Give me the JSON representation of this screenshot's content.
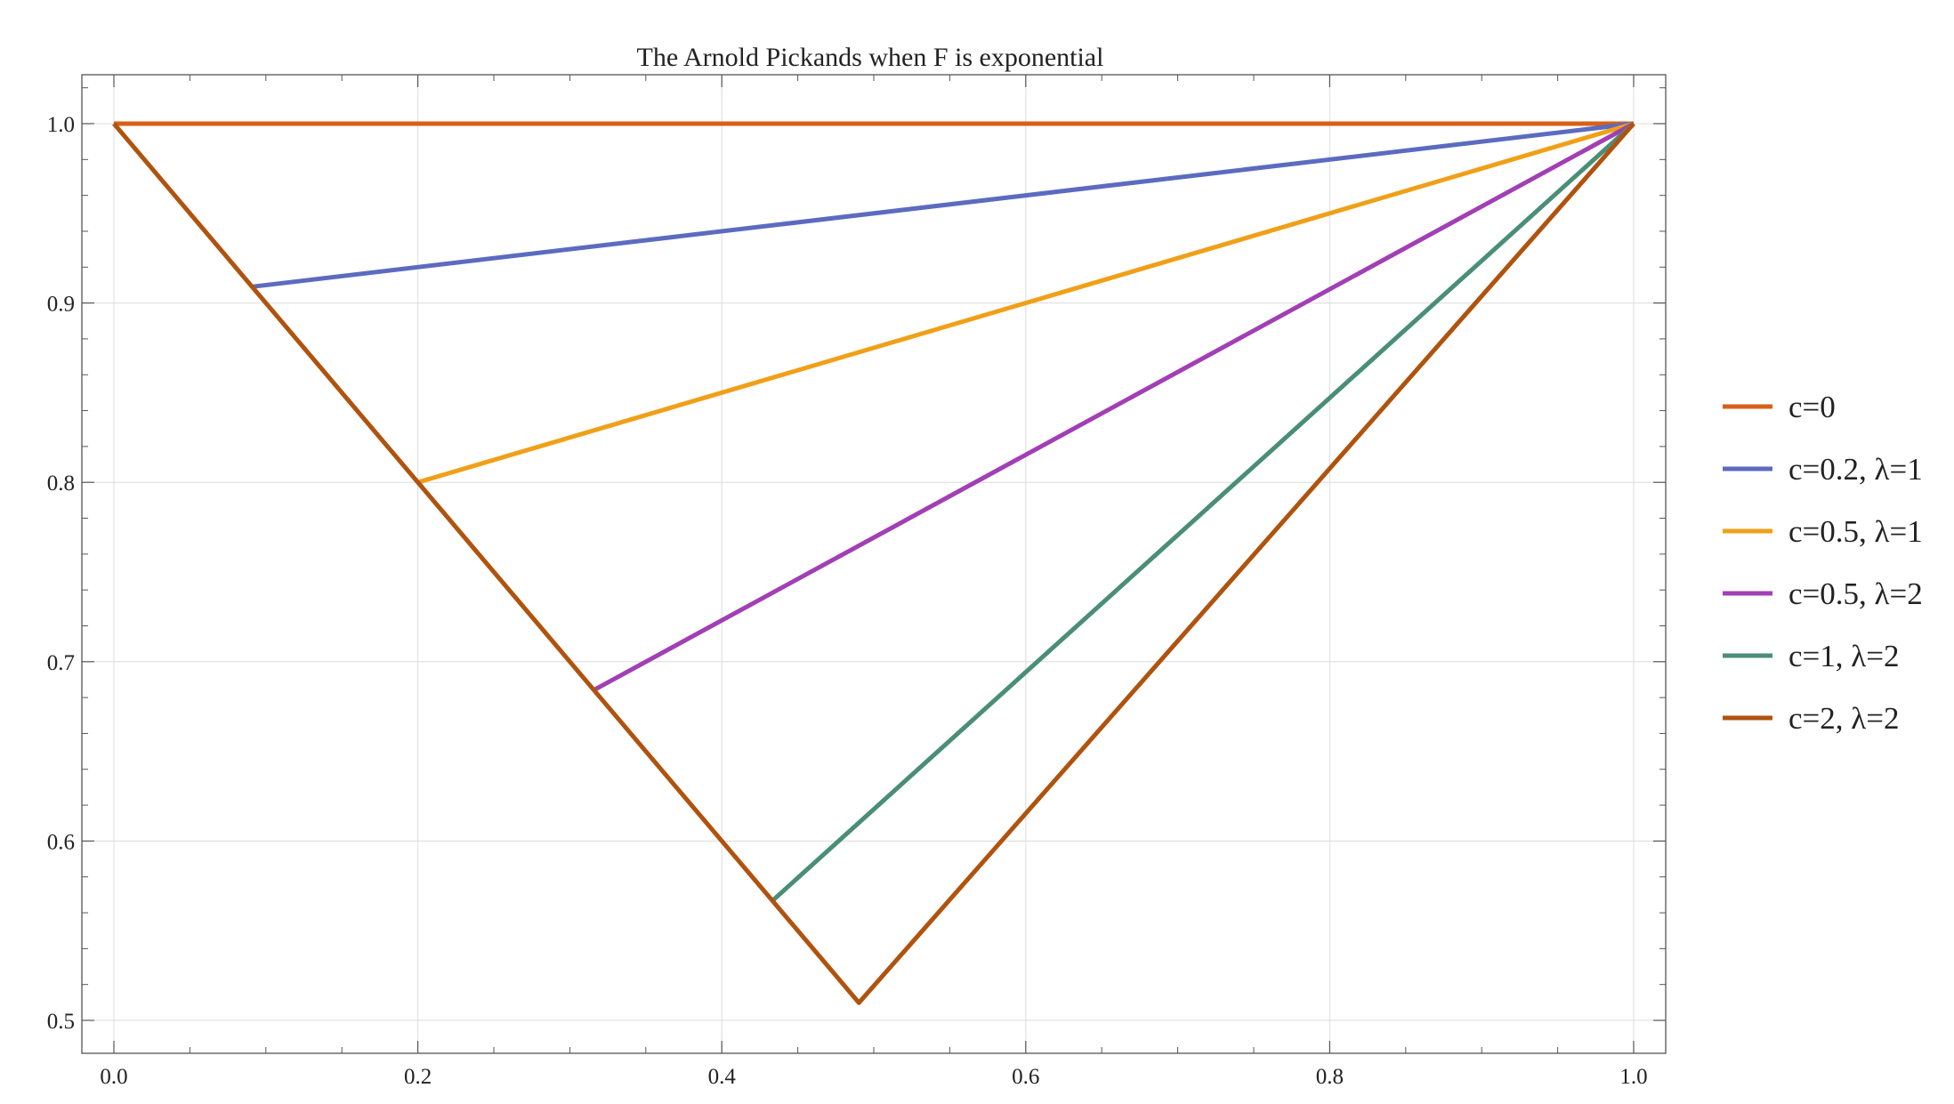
{
  "chart_data": {
    "type": "line",
    "title": "The Arnold Pickands when F is exponential",
    "xlabel": "",
    "ylabel": "",
    "xlim": [
      0,
      1
    ],
    "ylim": [
      0.5,
      1.0
    ],
    "grid": true,
    "legend_position": "right",
    "x_ticks": [
      "0.0",
      "0.2",
      "0.4",
      "0.6",
      "0.8",
      "1.0"
    ],
    "y_ticks": [
      "0.5",
      "0.6",
      "0.7",
      "0.8",
      "0.9",
      "1.0"
    ],
    "series": [
      {
        "name": "c=0",
        "color": "#D95F18",
        "points": [
          [
            0,
            1.0
          ],
          [
            1,
            1.0
          ]
        ]
      },
      {
        "name": "c=0.2, λ=1",
        "color": "#5C6BC0",
        "points": [
          [
            0.0909,
            0.9091
          ],
          [
            1,
            1.0
          ]
        ]
      },
      {
        "name": "c=0.5, λ=1",
        "color": "#F0A018",
        "points": [
          [
            0.2,
            0.8
          ],
          [
            1,
            1.0
          ]
        ]
      },
      {
        "name": "c=0.5, λ=2",
        "color": "#A23FB5",
        "points": [
          [
            0.3158,
            0.6842
          ],
          [
            1,
            1.0
          ]
        ]
      },
      {
        "name": "c=1, λ=2",
        "color": "#4A8E78",
        "points": [
          [
            0.4333,
            0.5667
          ],
          [
            1,
            1.0
          ]
        ]
      },
      {
        "name": "c=2, λ=2",
        "color": "#B0530E",
        "points": [
          [
            0,
            1.0
          ],
          [
            0.4902,
            0.5098
          ],
          [
            1,
            1.0
          ]
        ]
      }
    ]
  }
}
